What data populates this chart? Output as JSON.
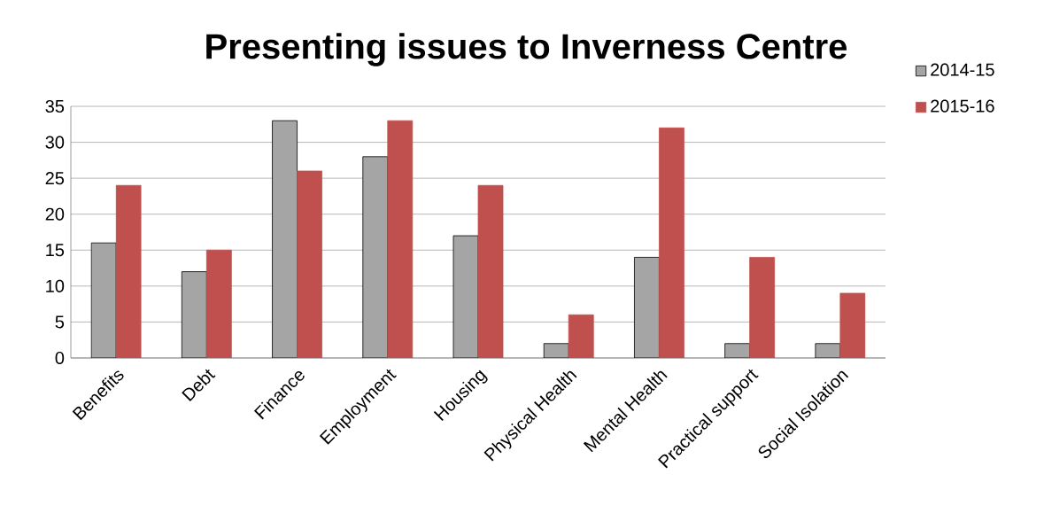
{
  "chart_data": {
    "type": "bar",
    "title": "Presenting issues to Inverness Centre",
    "categories": [
      "Benefits",
      "Debt",
      "Finance",
      "Employment",
      "Housing",
      "Physical Health",
      "Mental Health",
      "Practical support",
      "Social Isolation"
    ],
    "series": [
      {
        "name": "2014-15",
        "color": "#a5a5a5",
        "values": [
          16,
          12,
          33,
          28,
          17,
          2,
          14,
          2,
          2
        ]
      },
      {
        "name": "2015-16",
        "color": "#c0504d",
        "values": [
          24,
          15,
          26,
          33,
          24,
          6,
          32,
          14,
          9
        ]
      }
    ],
    "ylim": [
      0,
      35
    ],
    "yticks": [
      0,
      5,
      10,
      15,
      20,
      25,
      30,
      35
    ],
    "grid": "y",
    "legend": "top right"
  }
}
